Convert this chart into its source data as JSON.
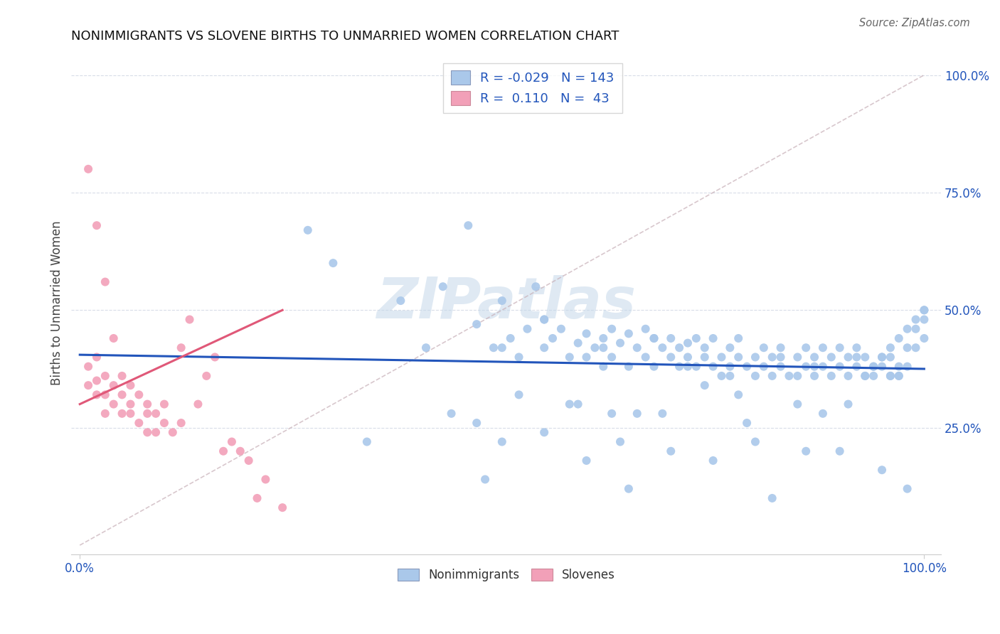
{
  "title": "NONIMMIGRANTS VS SLOVENE BIRTHS TO UNMARRIED WOMEN CORRELATION CHART",
  "source": "Source: ZipAtlas.com",
  "ylabel": "Births to Unmarried Women",
  "legend_blue_r": "-0.029",
  "legend_blue_n": "143",
  "legend_pink_r": "0.110",
  "legend_pink_n": "43",
  "blue_color": "#aac8ea",
  "pink_color": "#f2a0b8",
  "blue_line_color": "#2255bb",
  "pink_line_color": "#e05878",
  "dashed_color": "#c8b0b8",
  "watermark_color": "#c5d8ea",
  "grid_color": "#d8dde8",
  "title_color": "#111111",
  "label_color": "#2255bb",
  "source_color": "#666666",
  "xlim": [
    0.0,
    1.0
  ],
  "ylim": [
    -0.02,
    1.05
  ],
  "blue_x": [
    0.27,
    0.3,
    0.38,
    0.41,
    0.43,
    0.46,
    0.47,
    0.49,
    0.5,
    0.5,
    0.51,
    0.52,
    0.53,
    0.54,
    0.55,
    0.55,
    0.56,
    0.57,
    0.58,
    0.59,
    0.6,
    0.6,
    0.61,
    0.62,
    0.62,
    0.63,
    0.63,
    0.64,
    0.65,
    0.65,
    0.66,
    0.67,
    0.67,
    0.68,
    0.68,
    0.69,
    0.7,
    0.7,
    0.71,
    0.71,
    0.72,
    0.72,
    0.73,
    0.73,
    0.74,
    0.74,
    0.75,
    0.75,
    0.76,
    0.76,
    0.77,
    0.77,
    0.78,
    0.78,
    0.79,
    0.8,
    0.8,
    0.81,
    0.81,
    0.82,
    0.82,
    0.83,
    0.83,
    0.84,
    0.85,
    0.85,
    0.86,
    0.86,
    0.87,
    0.87,
    0.88,
    0.88,
    0.89,
    0.89,
    0.9,
    0.9,
    0.91,
    0.91,
    0.92,
    0.92,
    0.93,
    0.93,
    0.94,
    0.94,
    0.95,
    0.95,
    0.96,
    0.96,
    0.97,
    0.97,
    0.98,
    0.98,
    0.99,
    0.99,
    1.0,
    1.0,
    1.0,
    0.55,
    0.62,
    0.68,
    0.72,
    0.77,
    0.83,
    0.87,
    0.92,
    0.96,
    0.52,
    0.63,
    0.74,
    0.85,
    0.93,
    0.59,
    0.66,
    0.78,
    0.88,
    0.97,
    0.47,
    0.58,
    0.69,
    0.79,
    0.91,
    0.34,
    0.44,
    0.55,
    0.64,
    0.75,
    0.86,
    0.95,
    0.5,
    0.6,
    0.7,
    0.8,
    0.9,
    0.48,
    0.65,
    0.82,
    0.98,
    1.0,
    0.99,
    0.98,
    0.97,
    0.96,
    0.95,
    0.94
  ],
  "blue_y": [
    0.67,
    0.6,
    0.52,
    0.42,
    0.55,
    0.68,
    0.47,
    0.42,
    0.42,
    0.52,
    0.44,
    0.4,
    0.46,
    0.55,
    0.42,
    0.48,
    0.44,
    0.46,
    0.4,
    0.43,
    0.45,
    0.4,
    0.42,
    0.44,
    0.38,
    0.46,
    0.4,
    0.43,
    0.38,
    0.45,
    0.42,
    0.4,
    0.46,
    0.44,
    0.38,
    0.42,
    0.4,
    0.44,
    0.38,
    0.42,
    0.4,
    0.43,
    0.38,
    0.44,
    0.4,
    0.42,
    0.38,
    0.44,
    0.4,
    0.36,
    0.42,
    0.38,
    0.4,
    0.44,
    0.38,
    0.4,
    0.36,
    0.42,
    0.38,
    0.4,
    0.36,
    0.42,
    0.38,
    0.36,
    0.4,
    0.36,
    0.42,
    0.38,
    0.4,
    0.36,
    0.42,
    0.38,
    0.4,
    0.36,
    0.42,
    0.38,
    0.4,
    0.36,
    0.42,
    0.38,
    0.4,
    0.36,
    0.38,
    0.36,
    0.4,
    0.38,
    0.36,
    0.4,
    0.38,
    0.36,
    0.42,
    0.38,
    0.46,
    0.42,
    0.48,
    0.44,
    0.5,
    0.48,
    0.42,
    0.44,
    0.38,
    0.36,
    0.4,
    0.38,
    0.4,
    0.36,
    0.32,
    0.28,
    0.34,
    0.3,
    0.36,
    0.3,
    0.28,
    0.32,
    0.28,
    0.36,
    0.26,
    0.3,
    0.28,
    0.26,
    0.3,
    0.22,
    0.28,
    0.24,
    0.22,
    0.18,
    0.2,
    0.16,
    0.22,
    0.18,
    0.2,
    0.22,
    0.2,
    0.14,
    0.12,
    0.1,
    0.12,
    0.5,
    0.48,
    0.46,
    0.44,
    0.42,
    0.4,
    0.38
  ],
  "pink_x": [
    0.01,
    0.01,
    0.02,
    0.02,
    0.02,
    0.03,
    0.03,
    0.03,
    0.04,
    0.04,
    0.05,
    0.05,
    0.05,
    0.06,
    0.06,
    0.06,
    0.07,
    0.07,
    0.08,
    0.08,
    0.08,
    0.09,
    0.09,
    0.1,
    0.1,
    0.11,
    0.12,
    0.12,
    0.13,
    0.14,
    0.15,
    0.16,
    0.17,
    0.18,
    0.19,
    0.2,
    0.21,
    0.22,
    0.24,
    0.01,
    0.02,
    0.03,
    0.04
  ],
  "pink_y": [
    0.38,
    0.34,
    0.4,
    0.35,
    0.32,
    0.36,
    0.32,
    0.28,
    0.34,
    0.3,
    0.32,
    0.28,
    0.36,
    0.3,
    0.34,
    0.28,
    0.32,
    0.26,
    0.28,
    0.3,
    0.24,
    0.28,
    0.24,
    0.26,
    0.3,
    0.24,
    0.42,
    0.26,
    0.48,
    0.3,
    0.36,
    0.4,
    0.2,
    0.22,
    0.2,
    0.18,
    0.1,
    0.14,
    0.08,
    0.8,
    0.68,
    0.56,
    0.44
  ],
  "blue_line_x": [
    0.0,
    1.0
  ],
  "blue_line_y": [
    0.405,
    0.375
  ],
  "pink_line_x": [
    0.0,
    0.24
  ],
  "pink_line_y": [
    0.3,
    0.5
  ]
}
